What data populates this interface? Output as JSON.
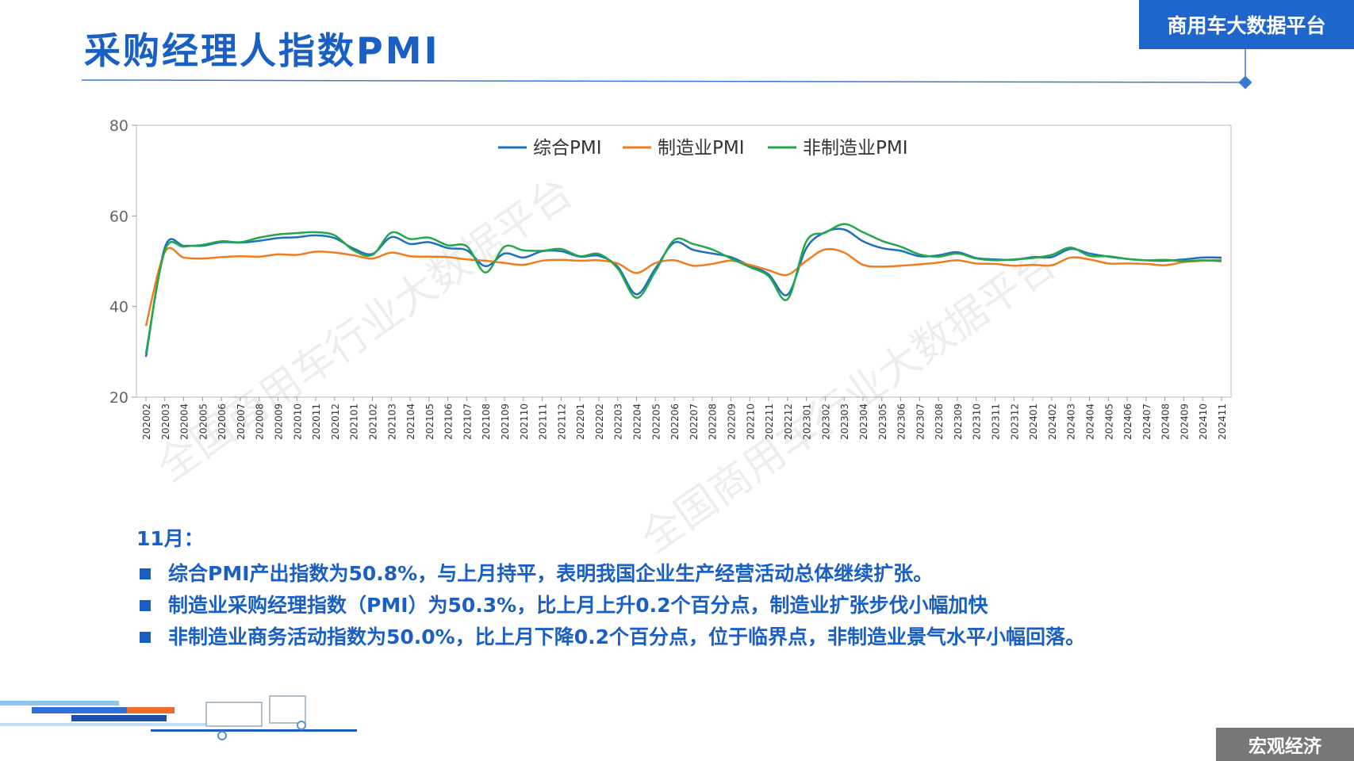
{
  "header": {
    "title": "采购经理人指数PMI",
    "badge": "商用车大数据平台"
  },
  "footer": {
    "section": "宏观经济"
  },
  "watermark": "全国商用车行业大数据平台",
  "chart_data": {
    "type": "line",
    "categories": [
      "202002",
      "202003",
      "202004",
      "202005",
      "202006",
      "202007",
      "202008",
      "202009",
      "202010",
      "202011",
      "202012",
      "202101",
      "202102",
      "202103",
      "202104",
      "202105",
      "202106",
      "202107",
      "202108",
      "202109",
      "202110",
      "202111",
      "202112",
      "202201",
      "202202",
      "202203",
      "202204",
      "202205",
      "202206",
      "202207",
      "202208",
      "202209",
      "202210",
      "202211",
      "202212",
      "202301",
      "202302",
      "202303",
      "202304",
      "202305",
      "202306",
      "202307",
      "202308",
      "202309",
      "202310",
      "202311",
      "202312",
      "202401",
      "202402",
      "202403",
      "202404",
      "202405",
      "202406",
      "202407",
      "202408",
      "202409",
      "202410",
      "202411"
    ],
    "series": [
      {
        "name": "综合PMI",
        "color": "#1f6fc0",
        "values": [
          28.9,
          53.0,
          53.4,
          53.4,
          54.2,
          54.1,
          54.5,
          55.1,
          55.3,
          55.7,
          55.1,
          52.8,
          51.6,
          55.3,
          53.8,
          54.2,
          52.9,
          52.4,
          48.9,
          51.7,
          50.8,
          52.2,
          52.2,
          51.0,
          51.2,
          48.8,
          42.7,
          48.4,
          54.1,
          52.5,
          51.7,
          50.9,
          49.0,
          47.1,
          42.6,
          52.9,
          56.4,
          57.0,
          54.4,
          52.9,
          52.3,
          51.1,
          51.3,
          52.0,
          50.7,
          50.4,
          50.3,
          50.9,
          50.9,
          52.7,
          51.7,
          51.0,
          50.5,
          50.2,
          50.1,
          50.4,
          50.8,
          50.8
        ]
      },
      {
        "name": "制造业PMI",
        "color": "#f07c1e",
        "values": [
          35.7,
          52.0,
          50.8,
          50.6,
          50.9,
          51.1,
          51.0,
          51.5,
          51.4,
          52.1,
          51.9,
          51.3,
          50.6,
          51.9,
          51.1,
          51.0,
          50.9,
          50.4,
          50.1,
          49.6,
          49.2,
          50.1,
          50.3,
          50.1,
          50.2,
          49.5,
          47.4,
          49.6,
          50.2,
          49.0,
          49.4,
          50.1,
          49.2,
          48.0,
          47.0,
          50.1,
          52.6,
          51.9,
          49.2,
          48.8,
          49.0,
          49.3,
          49.7,
          50.2,
          49.5,
          49.4,
          49.0,
          49.2,
          49.1,
          50.8,
          50.4,
          49.5,
          49.5,
          49.4,
          49.1,
          49.8,
          50.1,
          50.3
        ]
      },
      {
        "name": "非制造业PMI",
        "color": "#22a84a",
        "values": [
          29.6,
          52.3,
          53.2,
          53.6,
          54.4,
          54.2,
          55.2,
          55.9,
          56.2,
          56.4,
          55.7,
          52.4,
          51.4,
          56.3,
          54.9,
          55.2,
          53.5,
          53.3,
          47.5,
          53.2,
          52.4,
          52.3,
          52.7,
          51.1,
          51.6,
          48.4,
          41.9,
          47.8,
          54.7,
          53.8,
          52.6,
          50.6,
          48.7,
          46.7,
          41.6,
          54.4,
          56.3,
          58.2,
          56.4,
          54.5,
          53.2,
          51.5,
          51.0,
          51.7,
          50.6,
          50.2,
          50.4,
          50.7,
          51.4,
          53.0,
          51.2,
          51.1,
          50.5,
          50.2,
          50.3,
          50.0,
          50.2,
          50.0
        ]
      }
    ],
    "ylim": [
      20,
      80
    ],
    "yticks": [
      20,
      40,
      60,
      80
    ],
    "legend": "top"
  },
  "notes": {
    "heading": "11月：",
    "items": [
      "综合PMI产出指数为50.8%，与上月持平，表明我国企业生产经营活动总体继续扩张。",
      "制造业采购经理指数（PMI）为50.3%，比上月上升0.2个百分点，制造业扩张步伐小幅加快",
      "非制造业商务活动指数为50.0%，比上月下降0.2个百分点，位于临界点，非制造业景气水平小幅回落。"
    ]
  }
}
